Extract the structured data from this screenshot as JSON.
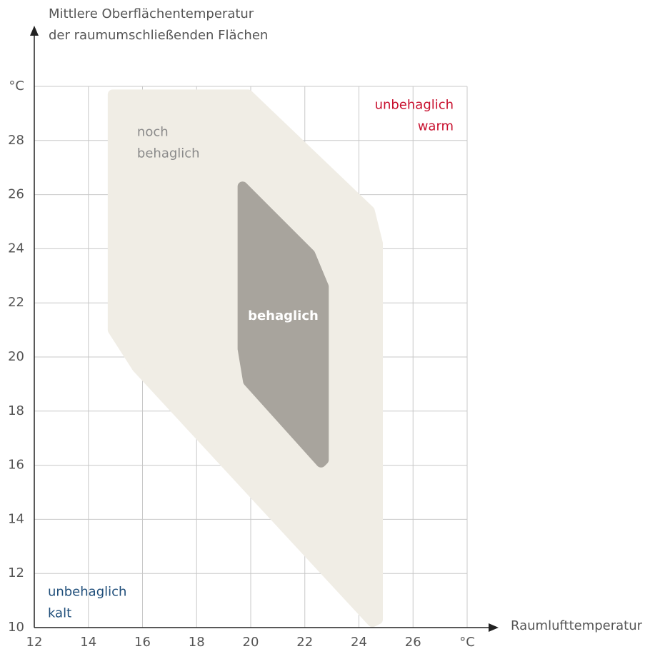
{
  "chart_data": {
    "type": "region",
    "y_axis_label": [
      "Mittlere Oberflächentemperatur",
      "der raumumschließenden Flächen"
    ],
    "x_axis_label": "Raumlufttemperatur",
    "xlim": [
      12,
      28
    ],
    "xticks": [
      12,
      14,
      16,
      18,
      20,
      22,
      24,
      26,
      {
        "value": 28,
        "label": "°C"
      }
    ],
    "ylim": [
      10,
      30
    ],
    "yticks": [
      10,
      12,
      14,
      16,
      18,
      20,
      22,
      24,
      26,
      28,
      {
        "value": 30,
        "label": "°C"
      }
    ],
    "grid": true,
    "regions": [
      {
        "name": [
          "noch",
          "behaglich"
        ],
        "color": "#f0ede5",
        "text_color": "#8a8a8a",
        "label_x": 15.8,
        "label_y": 28.3,
        "x": [
          14.9,
          19.9,
          24.4,
          24.7,
          24.7,
          24.5,
          15.8,
          14.9
        ],
        "y": [
          29.7,
          29.7,
          25.4,
          24.2,
          10.3,
          10.2,
          19.6,
          21.0
        ]
      },
      {
        "name": [
          "behaglich"
        ],
        "color": "#a8a49d",
        "text_color": "#ffffff",
        "bold": true,
        "label_x": 21.2,
        "label_y": 21.5,
        "anchor": "middle",
        "x": [
          19.7,
          22.2,
          22.7,
          22.7,
          22.6,
          19.9,
          19.7
        ],
        "y": [
          26.3,
          23.8,
          22.6,
          16.2,
          16.1,
          19.1,
          20.3
        ]
      }
    ],
    "annotations": [
      {
        "text": [
          "unbehaglich",
          "warm"
        ],
        "color": "#c8102e",
        "x": 27.5,
        "y": 29.3,
        "anchor": "end"
      },
      {
        "text": [
          "unbehaglich",
          "kalt"
        ],
        "color": "#1f4e7a",
        "x": 12.5,
        "y": 11.3,
        "anchor": "start"
      }
    ]
  }
}
